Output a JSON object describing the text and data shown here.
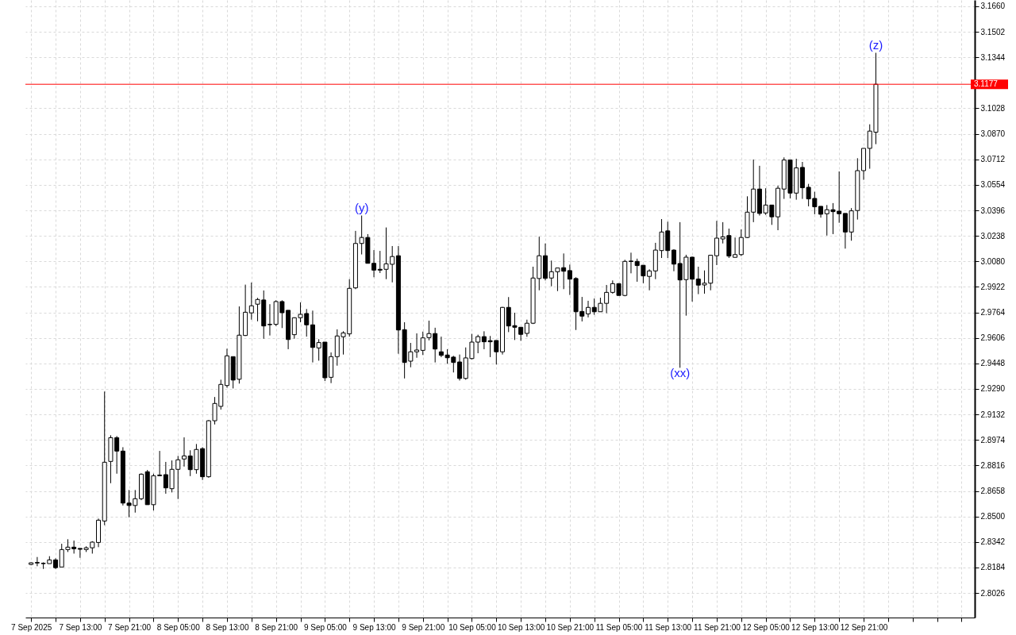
{
  "chart_data": {
    "type": "candlestick",
    "x": [
      "2025-09-07T05:00",
      "2025-09-07T06:00",
      "2025-09-07T07:00",
      "2025-09-07T08:00",
      "2025-09-07T09:00",
      "2025-09-07T10:00",
      "2025-09-07T11:00",
      "2025-09-07T12:00",
      "2025-09-07T13:00",
      "2025-09-07T14:00",
      "2025-09-07T15:00",
      "2025-09-07T16:00",
      "2025-09-07T17:00",
      "2025-09-07T18:00",
      "2025-09-07T19:00",
      "2025-09-07T20:00",
      "2025-09-07T21:00",
      "2025-09-07T22:00",
      "2025-09-07T23:00",
      "2025-09-08T00:00",
      "2025-09-08T01:00",
      "2025-09-08T02:00",
      "2025-09-08T03:00",
      "2025-09-08T04:00",
      "2025-09-08T05:00",
      "2025-09-08T06:00",
      "2025-09-08T07:00",
      "2025-09-08T08:00",
      "2025-09-08T09:00",
      "2025-09-08T10:00",
      "2025-09-08T11:00",
      "2025-09-08T12:00",
      "2025-09-08T13:00",
      "2025-09-08T14:00",
      "2025-09-08T15:00",
      "2025-09-08T16:00",
      "2025-09-08T17:00",
      "2025-09-08T18:00",
      "2025-09-08T19:00",
      "2025-09-08T20:00",
      "2025-09-08T21:00",
      "2025-09-08T22:00",
      "2025-09-08T23:00",
      "2025-09-09T00:00",
      "2025-09-09T01:00",
      "2025-09-09T02:00",
      "2025-09-09T03:00",
      "2025-09-09T04:00",
      "2025-09-09T05:00",
      "2025-09-09T06:00",
      "2025-09-09T07:00",
      "2025-09-09T08:00",
      "2025-09-09T09:00",
      "2025-09-09T10:00",
      "2025-09-09T11:00",
      "2025-09-09T12:00",
      "2025-09-09T13:00",
      "2025-09-09T14:00",
      "2025-09-09T15:00",
      "2025-09-09T16:00",
      "2025-09-09T17:00",
      "2025-09-09T18:00",
      "2025-09-09T19:00",
      "2025-09-09T20:00",
      "2025-09-09T21:00",
      "2025-09-09T22:00",
      "2025-09-09T23:00",
      "2025-09-10T00:00",
      "2025-09-10T01:00",
      "2025-09-10T02:00",
      "2025-09-10T03:00",
      "2025-09-10T04:00",
      "2025-09-10T05:00",
      "2025-09-10T06:00",
      "2025-09-10T07:00",
      "2025-09-10T08:00",
      "2025-09-10T09:00",
      "2025-09-10T10:00",
      "2025-09-10T11:00",
      "2025-09-10T12:00",
      "2025-09-10T13:00",
      "2025-09-10T14:00",
      "2025-09-10T15:00",
      "2025-09-10T16:00",
      "2025-09-10T17:00",
      "2025-09-10T18:00",
      "2025-09-10T19:00",
      "2025-09-10T20:00",
      "2025-09-10T21:00",
      "2025-09-10T22:00",
      "2025-09-10T23:00",
      "2025-09-11T00:00",
      "2025-09-11T01:00",
      "2025-09-11T02:00",
      "2025-09-11T03:00",
      "2025-09-11T04:00",
      "2025-09-11T05:00",
      "2025-09-11T06:00",
      "2025-09-11T07:00",
      "2025-09-11T08:00",
      "2025-09-11T09:00",
      "2025-09-11T10:00",
      "2025-09-11T11:00",
      "2025-09-11T12:00",
      "2025-09-11T13:00",
      "2025-09-11T14:00",
      "2025-09-11T15:00",
      "2025-09-11T16:00",
      "2025-09-11T17:00",
      "2025-09-11T18:00",
      "2025-09-11T19:00",
      "2025-09-11T20:00",
      "2025-09-11T21:00",
      "2025-09-11T22:00",
      "2025-09-11T23:00",
      "2025-09-12T00:00",
      "2025-09-12T01:00",
      "2025-09-12T02:00",
      "2025-09-12T03:00",
      "2025-09-12T04:00",
      "2025-09-12T05:00",
      "2025-09-12T06:00",
      "2025-09-12T07:00",
      "2025-09-12T08:00",
      "2025-09-12T09:00",
      "2025-09-12T10:00",
      "2025-09-12T11:00",
      "2025-09-12T12:00",
      "2025-09-12T13:00",
      "2025-09-12T14:00",
      "2025-09-12T15:00",
      "2025-09-12T16:00",
      "2025-09-12T17:00",
      "2025-09-12T18:00",
      "2025-09-12T19:00",
      "2025-09-12T20:00",
      "2025-09-12T21:00",
      "2025-09-12T22:00",
      "2025-09-12T23:00"
    ],
    "ohlc": [
      [
        2.8203,
        2.8216,
        2.8198,
        2.8213
      ],
      [
        2.8215,
        2.8249,
        2.8192,
        2.8212
      ],
      [
        2.821,
        2.8216,
        2.8175,
        2.8208
      ],
      [
        2.8208,
        2.8254,
        2.8208,
        2.8231
      ],
      [
        2.8231,
        2.8241,
        2.8175,
        2.8183
      ],
      [
        2.8187,
        2.8331,
        2.8187,
        2.8295
      ],
      [
        2.8295,
        2.8359,
        2.828,
        2.831
      ],
      [
        2.831,
        2.8351,
        2.827,
        2.83
      ],
      [
        2.8302,
        2.8303,
        2.8244,
        2.8297
      ],
      [
        2.8295,
        2.8315,
        2.828,
        2.8306
      ],
      [
        2.8306,
        2.8347,
        2.827,
        2.8341
      ],
      [
        2.8339,
        2.8487,
        2.831,
        2.8477
      ],
      [
        2.8472,
        2.9274,
        2.8446,
        2.8836
      ],
      [
        2.8841,
        2.9003,
        2.8706,
        2.8988
      ],
      [
        2.8988,
        2.8998,
        2.8765,
        2.8905
      ],
      [
        2.8905,
        2.8929,
        2.8568,
        2.8583
      ],
      [
        2.8583,
        2.8664,
        2.8495,
        2.8568
      ],
      [
        2.8568,
        2.8664,
        2.8524,
        2.861
      ],
      [
        2.861,
        2.8767,
        2.8601,
        2.8762
      ],
      [
        2.8777,
        2.8788,
        2.8573,
        2.8573
      ],
      [
        2.8573,
        2.8765,
        2.8537,
        2.8752
      ],
      [
        2.8752,
        2.8906,
        2.8752,
        2.8757
      ],
      [
        2.8759,
        2.8838,
        2.8641,
        2.8677
      ],
      [
        2.8672,
        2.8847,
        2.8649,
        2.8792
      ],
      [
        2.8792,
        2.8875,
        2.8608,
        2.8851
      ],
      [
        2.8856,
        2.899,
        2.8809,
        2.8875
      ],
      [
        2.8875,
        2.891,
        2.875,
        2.879
      ],
      [
        2.879,
        2.8949,
        2.8765,
        2.8915
      ],
      [
        2.892,
        2.8929,
        2.8726,
        2.8746
      ],
      [
        2.8746,
        2.9097,
        2.874,
        2.9093
      ],
      [
        2.9093,
        2.924,
        2.907,
        2.92
      ],
      [
        2.9182,
        2.9347,
        2.9162,
        2.9318
      ],
      [
        2.9311,
        2.9539,
        2.9298,
        2.9495
      ],
      [
        2.949,
        2.949,
        2.9293,
        2.9345
      ],
      [
        2.935,
        2.9801,
        2.9323,
        2.9623
      ],
      [
        2.9621,
        2.9936,
        2.9618,
        2.9765
      ],
      [
        2.9761,
        2.9949,
        2.9719,
        2.9805
      ],
      [
        2.9815,
        2.9854,
        2.9709,
        2.9844
      ],
      [
        2.9841,
        2.99,
        2.9601,
        2.968
      ],
      [
        2.969,
        2.9815,
        2.9621,
        2.9688
      ],
      [
        2.969,
        2.9839,
        2.968,
        2.9831
      ],
      [
        2.9831,
        2.9839,
        2.9667,
        2.9762
      ],
      [
        2.9777,
        2.9777,
        2.9536,
        2.9596
      ],
      [
        2.9626,
        2.9733,
        2.9601,
        2.9731
      ],
      [
        2.9731,
        2.9826,
        2.9703,
        2.9752
      ],
      [
        2.9757,
        2.9785,
        2.9614,
        2.9687
      ],
      [
        2.9687,
        2.9775,
        2.9454,
        2.9547
      ],
      [
        2.9544,
        2.9598,
        2.9465,
        2.9577
      ],
      [
        2.958,
        2.958,
        2.9339,
        2.9359
      ],
      [
        2.9362,
        2.9516,
        2.9326,
        2.949
      ],
      [
        2.949,
        2.9659,
        2.9434,
        2.9618
      ],
      [
        2.9613,
        2.9647,
        2.9503,
        2.9637
      ],
      [
        2.9631,
        2.997,
        2.9614,
        2.9913
      ],
      [
        2.9916,
        3.0269,
        2.9908,
        3.0191
      ],
      [
        3.0191,
        3.0364,
        3.0123,
        3.0228
      ],
      [
        3.0228,
        3.0249,
        3.0068,
        3.0068
      ],
      [
        3.0068,
        3.015,
        2.9982,
        3.0026
      ],
      [
        3.0031,
        3.0145,
        3.0008,
        3.0026
      ],
      [
        3.0031,
        3.029,
        2.997,
        3.0065
      ],
      [
        3.0062,
        3.0175,
        2.995,
        3.011
      ],
      [
        3.0115,
        3.0175,
        2.9508,
        2.9655
      ],
      [
        2.9657,
        2.9703,
        2.9355,
        2.9454
      ],
      [
        2.9462,
        2.9575,
        2.9424,
        2.952
      ],
      [
        2.952,
        2.9634,
        2.9483,
        2.9531
      ],
      [
        2.9529,
        2.9645,
        2.95,
        2.9606
      ],
      [
        2.9608,
        2.9713,
        2.9591,
        2.9633
      ],
      [
        2.9633,
        2.9669,
        2.9454,
        2.9537
      ],
      [
        2.952,
        2.9614,
        2.9487,
        2.9498
      ],
      [
        2.95,
        2.9536,
        2.9446,
        2.9483
      ],
      [
        2.9487,
        2.9495,
        2.9392,
        2.9454
      ],
      [
        2.9457,
        2.9503,
        2.9342,
        2.9355
      ],
      [
        2.9355,
        2.9547,
        2.9347,
        2.9482
      ],
      [
        2.9478,
        2.9631,
        2.9473,
        2.958
      ],
      [
        2.958,
        2.9626,
        2.9511,
        2.9614
      ],
      [
        2.9614,
        2.9647,
        2.9536,
        2.9582
      ],
      [
        2.9589,
        2.9618,
        2.9487,
        2.9582
      ],
      [
        2.959,
        2.959,
        2.9441,
        2.952
      ],
      [
        2.952,
        2.9798,
        2.9503,
        2.9795
      ],
      [
        2.9795,
        2.9859,
        2.9642,
        2.968
      ],
      [
        2.9682,
        2.9762,
        2.9593,
        2.9672
      ],
      [
        2.9672,
        2.9672,
        2.9588,
        2.9628
      ],
      [
        2.9634,
        2.9719,
        2.9613,
        2.9697
      ],
      [
        2.9697,
        3.0047,
        2.9692,
        2.9977
      ],
      [
        2.9974,
        3.0233,
        2.9901,
        3.0115
      ],
      [
        3.0115,
        3.0191,
        2.9962,
        2.9975
      ],
      [
        2.9977,
        3.0085,
        2.9926,
        3.0016
      ],
      [
        3.0016,
        3.0039,
        2.9896,
        3.0039
      ],
      [
        3.0041,
        3.0129,
        2.9908,
        3.0019
      ],
      [
        3.0023,
        3.006,
        2.9872,
        2.997
      ],
      [
        2.9974,
        2.9982,
        2.9655,
        2.9768
      ],
      [
        2.977,
        2.986,
        2.9708,
        2.9741
      ],
      [
        2.9755,
        2.9836,
        2.9733,
        2.9795
      ],
      [
        2.9795,
        2.985,
        2.9749,
        2.9768
      ],
      [
        2.9768,
        2.9855,
        2.9768,
        2.982
      ],
      [
        2.982,
        2.9934,
        2.9759,
        2.9888
      ],
      [
        2.9888,
        2.9962,
        2.988,
        2.9942
      ],
      [
        2.9942,
        2.9945,
        2.9869,
        2.9869
      ],
      [
        2.9869,
        3.009,
        2.9864,
        3.008
      ],
      [
        3.0082,
        3.0134,
        3.0006,
        3.0079
      ],
      [
        3.008,
        3.0097,
        2.9954,
        3.0054
      ],
      [
        3.0056,
        3.0056,
        2.9945,
        2.999
      ],
      [
        2.9987,
        3.0031,
        2.9901,
        3.0021
      ],
      [
        3.0021,
        3.0195,
        2.997,
        3.015
      ],
      [
        3.0147,
        3.0342,
        3.0101,
        3.0262
      ],
      [
        3.0269,
        3.0326,
        3.0101,
        3.0147
      ],
      [
        3.015,
        3.0155,
        3.0019,
        3.0063
      ],
      [
        3.0067,
        3.0323,
        2.9421,
        2.9965
      ],
      [
        2.9967,
        3.0121,
        2.9744,
        3.0106
      ],
      [
        3.0106,
        3.0109,
        2.9831,
        2.997
      ],
      [
        2.9971,
        3.0047,
        2.9877,
        2.9933
      ],
      [
        2.9934,
        3.0024,
        2.988,
        2.9945
      ],
      [
        2.9945,
        3.0118,
        2.9901,
        3.0118
      ],
      [
        3.0115,
        3.0331,
        3.0057,
        3.0224
      ],
      [
        3.0219,
        3.0323,
        3.0191,
        3.0232
      ],
      [
        3.024,
        3.0283,
        3.0101,
        3.0113
      ],
      [
        3.0105,
        3.0228,
        3.0105,
        3.0122
      ],
      [
        3.0122,
        3.0278,
        3.0113,
        3.0228
      ],
      [
        3.0228,
        3.0483,
        3.0224,
        3.0385
      ],
      [
        3.0385,
        3.0711,
        3.0323,
        3.0528
      ],
      [
        3.0528,
        3.0672,
        3.0364,
        3.0377
      ],
      [
        3.038,
        3.0533,
        3.0368,
        3.0429
      ],
      [
        3.0429,
        3.0429,
        3.0306,
        3.0356
      ],
      [
        3.0356,
        3.0549,
        3.0273,
        3.0533
      ],
      [
        3.0528,
        3.0724,
        3.0467,
        3.0708
      ],
      [
        3.0708,
        3.0708,
        3.047,
        3.0503
      ],
      [
        3.0503,
        3.0716,
        3.0462,
        3.0659
      ],
      [
        3.0662,
        3.0696,
        3.0467,
        3.0536
      ],
      [
        3.0539,
        3.056,
        3.0421,
        3.0467
      ],
      [
        3.047,
        3.0511,
        3.0372,
        3.0418
      ],
      [
        3.0421,
        3.0421,
        3.0351,
        3.0372
      ],
      [
        3.0375,
        3.0429,
        3.024,
        3.04
      ],
      [
        3.04,
        3.0441,
        3.0249,
        3.0388
      ],
      [
        3.0391,
        3.0637,
        3.0319,
        3.0375
      ],
      [
        3.0377,
        3.0377,
        3.0159,
        3.0262
      ],
      [
        3.0262,
        3.041,
        3.0208,
        3.0393
      ],
      [
        3.0395,
        3.0719,
        3.0339,
        3.0642
      ],
      [
        3.0642,
        3.078,
        3.0585,
        3.078
      ],
      [
        3.078,
        3.0929,
        3.0654,
        3.0887
      ],
      [
        3.088,
        3.1372,
        3.0806,
        3.1177
      ]
    ],
    "xlim": [
      "2025-09-07T04:43",
      "2025-09-13T14:30"
    ],
    "xticks": [
      {
        "value": "2025-09-07T05:00",
        "label": "7 Sep 2025"
      },
      {
        "value": "2025-09-07T09:00",
        "label": null
      },
      {
        "value": "2025-09-07T13:00",
        "label": "7 Sep 13:00"
      },
      {
        "value": "2025-09-07T17:00",
        "label": null
      },
      {
        "value": "2025-09-07T21:00",
        "label": "7 Sep 21:00"
      },
      {
        "value": "2025-09-08T01:00",
        "label": null
      },
      {
        "value": "2025-09-08T05:00",
        "label": "8 Sep 05:00"
      },
      {
        "value": "2025-09-08T09:00",
        "label": null
      },
      {
        "value": "2025-09-08T13:00",
        "label": "8 Sep 13:00"
      },
      {
        "value": "2025-09-08T17:00",
        "label": null
      },
      {
        "value": "2025-09-08T21:00",
        "label": "8 Sep 21:00"
      },
      {
        "value": "2025-09-09T01:00",
        "label": null
      },
      {
        "value": "2025-09-09T05:00",
        "label": "9 Sep 05:00"
      },
      {
        "value": "2025-09-09T09:00",
        "label": null
      },
      {
        "value": "2025-09-09T13:00",
        "label": "9 Sep 13:00"
      },
      {
        "value": "2025-09-09T17:00",
        "label": null
      },
      {
        "value": "2025-09-09T21:00",
        "label": "9 Sep 21:00"
      },
      {
        "value": "2025-09-10T01:00",
        "label": null
      },
      {
        "value": "2025-09-10T05:00",
        "label": "10 Sep 05:00"
      },
      {
        "value": "2025-09-10T09:00",
        "label": null
      },
      {
        "value": "2025-09-10T13:00",
        "label": "10 Sep 13:00"
      },
      {
        "value": "2025-09-10T17:00",
        "label": null
      },
      {
        "value": "2025-09-10T21:00",
        "label": "10 Sep 21:00"
      },
      {
        "value": "2025-09-11T01:00",
        "label": null
      },
      {
        "value": "2025-09-11T05:00",
        "label": "11 Sep 05:00"
      },
      {
        "value": "2025-09-11T09:00",
        "label": null
      },
      {
        "value": "2025-09-11T13:00",
        "label": "11 Sep 13:00"
      },
      {
        "value": "2025-09-11T17:00",
        "label": null
      },
      {
        "value": "2025-09-11T21:00",
        "label": "11 Sep 21:00"
      },
      {
        "value": "2025-09-12T01:00",
        "label": null
      },
      {
        "value": "2025-09-12T05:00",
        "label": "12 Sep 05:00"
      },
      {
        "value": "2025-09-12T09:00",
        "label": null
      },
      {
        "value": "2025-09-12T13:00",
        "label": "12 Sep 13:00"
      },
      {
        "value": "2025-09-12T17:00",
        "label": null
      },
      {
        "value": "2025-09-12T21:00",
        "label": "12 Sep 21:00"
      },
      {
        "value": "2025-09-13T01:00",
        "label": null
      },
      {
        "value": "2025-09-13T05:00",
        "label": null
      },
      {
        "value": "2025-09-13T09:00",
        "label": null
      },
      {
        "value": "2025-09-13T13:00",
        "label": null
      }
    ],
    "ylim": [
      2.7874,
      3.1699
    ],
    "yticks": [
      2.8026,
      2.8184,
      2.8342,
      {
        "value": 2.85,
        "label": "2.8500"
      },
      2.8658,
      2.8816,
      2.8974,
      2.9132,
      {
        "value": 2.929,
        "label": "2.9290"
      },
      2.9448,
      2.9606,
      2.9764,
      2.9922,
      {
        "value": 3.008,
        "label": "3.0080"
      },
      3.0238,
      3.0396,
      3.0554,
      3.0712,
      {
        "value": 3.087,
        "label": "3.0870"
      },
      3.1028,
      3.1344,
      3.1502,
      {
        "value": 3.166,
        "label": "3.1660"
      }
    ],
    "ref_lines": [
      {
        "axis": "y",
        "value": 3.1177,
        "label": "3.1177",
        "color": "#ff0000"
      }
    ],
    "annotations": [
      {
        "text": "(y)",
        "x": "2025-09-09T11:00",
        "y": 3.0364
      },
      {
        "text": "(xx)",
        "x": "2025-09-11T15:00",
        "y": 2.9421
      },
      {
        "text": "(z)",
        "x": "2025-09-12T23:00",
        "y": 3.1372
      }
    ],
    "grid": true
  }
}
